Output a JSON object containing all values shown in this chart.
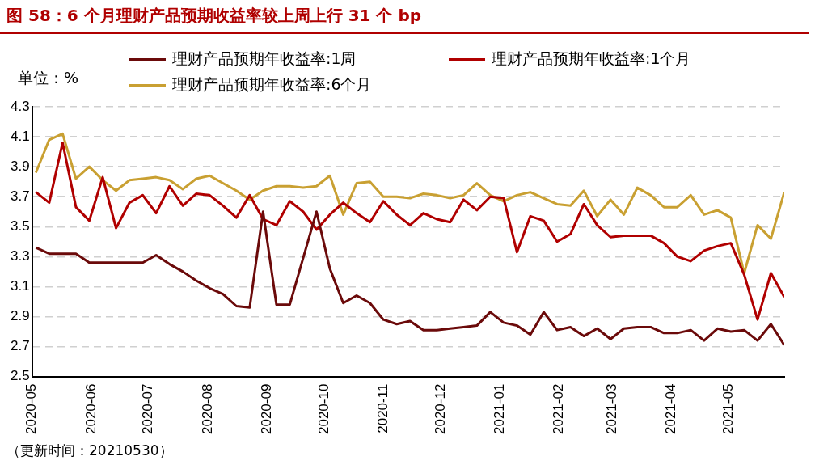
{
  "chart_data": {
    "type": "line",
    "title": "图 58：6 个月理财产品预期收益率较上周上行 31 个 bp",
    "ylabel": "单位：%",
    "annotations": [
      "（更新时间：20210530）"
    ],
    "x": [
      "2020-05-03",
      "2020-05-10",
      "2020-05-17",
      "2020-05-24",
      "2020-05-31",
      "2020-06-07",
      "2020-06-14",
      "2020-06-21",
      "2020-06-28",
      "2020-07-05",
      "2020-07-12",
      "2020-07-19",
      "2020-07-26",
      "2020-08-02",
      "2020-08-09",
      "2020-08-16",
      "2020-08-23",
      "2020-08-30",
      "2020-09-06",
      "2020-09-13",
      "2020-09-20",
      "2020-09-27",
      "2020-10-04",
      "2020-10-11",
      "2020-10-18",
      "2020-10-25",
      "2020-11-01",
      "2020-11-08",
      "2020-11-15",
      "2020-11-22",
      "2020-11-29",
      "2020-12-06",
      "2020-12-13",
      "2020-12-20",
      "2020-12-27",
      "2021-01-03",
      "2021-01-10",
      "2021-01-17",
      "2021-01-24",
      "2021-01-31",
      "2021-02-07",
      "2021-02-14",
      "2021-02-21",
      "2021-02-28",
      "2021-03-07",
      "2021-03-14",
      "2021-03-21",
      "2021-03-28",
      "2021-04-04",
      "2021-04-11",
      "2021-04-18",
      "2021-04-25",
      "2021-05-02",
      "2021-05-09",
      "2021-05-16",
      "2021-05-23",
      "2021-05-30"
    ],
    "series": [
      {
        "name": "理财产品预期年收益率:1周",
        "color": "#6b0a0a",
        "values": [
          3.36,
          3.32,
          3.32,
          3.32,
          3.26,
          3.26,
          3.26,
          3.26,
          3.26,
          3.31,
          3.25,
          3.2,
          3.14,
          3.09,
          3.05,
          2.97,
          2.96,
          3.6,
          2.98,
          2.98,
          3.29,
          3.6,
          3.22,
          2.99,
          3.04,
          2.99,
          2.88,
          2.85,
          2.87,
          2.81,
          2.81,
          2.82,
          2.83,
          2.84,
          2.93,
          2.86,
          2.84,
          2.78,
          2.93,
          2.81,
          2.83,
          2.77,
          2.82,
          2.75,
          2.82,
          2.83,
          2.83,
          2.79,
          2.79,
          2.81,
          2.74,
          2.82,
          2.8,
          2.81,
          2.74,
          2.85,
          2.71
        ]
      },
      {
        "name": "理财产品预期年收益率:1个月",
        "color": "#b00000",
        "values": [
          3.73,
          3.66,
          4.06,
          3.63,
          3.54,
          3.83,
          3.49,
          3.66,
          3.71,
          3.59,
          3.77,
          3.64,
          3.72,
          3.71,
          3.64,
          3.56,
          3.71,
          3.55,
          3.51,
          3.67,
          3.6,
          3.48,
          3.58,
          3.66,
          3.59,
          3.53,
          3.67,
          3.58,
          3.51,
          3.59,
          3.55,
          3.53,
          3.68,
          3.61,
          3.7,
          3.69,
          3.33,
          3.57,
          3.54,
          3.4,
          3.45,
          3.65,
          3.51,
          3.43,
          3.44,
          3.44,
          3.44,
          3.39,
          3.3,
          3.27,
          3.34,
          3.37,
          3.39,
          3.18,
          2.88,
          3.19,
          3.03
        ]
      },
      {
        "name": "理财产品预期年收益率:6个月",
        "color": "#c9a032",
        "values": [
          3.86,
          4.08,
          4.12,
          3.82,
          3.9,
          3.81,
          3.74,
          3.81,
          3.82,
          3.83,
          3.81,
          3.75,
          3.82,
          3.84,
          3.79,
          3.74,
          3.68,
          3.74,
          3.77,
          3.77,
          3.76,
          3.77,
          3.84,
          3.58,
          3.79,
          3.8,
          3.7,
          3.7,
          3.69,
          3.72,
          3.71,
          3.69,
          3.71,
          3.79,
          3.71,
          3.67,
          3.71,
          3.73,
          3.69,
          3.65,
          3.64,
          3.74,
          3.57,
          3.68,
          3.58,
          3.76,
          3.71,
          3.63,
          3.63,
          3.71,
          3.58,
          3.61,
          3.56,
          3.19,
          3.51,
          3.42,
          3.73
        ]
      }
    ],
    "xlim": [
      "2020-05-01",
      "2021-05-30"
    ],
    "xticks": [
      "2020-05",
      "2020-06",
      "2020-07",
      "2020-08",
      "2020-09",
      "2020-10",
      "2020-11",
      "2020-12",
      "2021-01",
      "2021-02",
      "2021-03",
      "2021-04",
      "2021-05"
    ],
    "ylim": [
      2.5,
      4.3
    ],
    "yticks": [
      2.5,
      2.7,
      2.9,
      3.1,
      3.3,
      3.5,
      3.7,
      3.9,
      4.1,
      4.3
    ],
    "grid": "y",
    "legend": "top",
    "marker": "none"
  }
}
